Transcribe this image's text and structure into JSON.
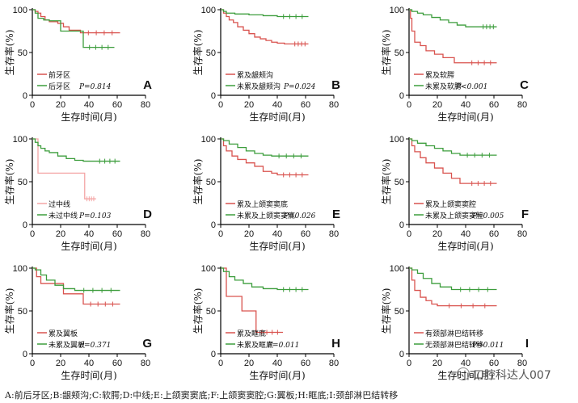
{
  "figure": {
    "caption": "A:前后牙区;B:龈颊沟;C:软腭;D:中线;E:上颌窦窦底;F:上颌窦窦腔;G:翼板;H:眶底;I:颈部淋巴结转移",
    "watermark": "口腔科达人007",
    "colors": {
      "red": "#d9534f",
      "green": "#3c9d3c",
      "pink": "#f4a6a6",
      "axis": "#000000"
    }
  },
  "chart_data": [
    {
      "type": "line",
      "panel": "A",
      "ylabel": "生存率(%)",
      "xlabel": "生存时间(月)",
      "xlim": [
        0,
        80
      ],
      "ylim": [
        0,
        100
      ],
      "xticks": [
        0,
        20,
        40,
        60,
        80
      ],
      "yticks": [
        0,
        50,
        100
      ],
      "series": [
        {
          "name": "前牙区",
          "color": "#d9534f",
          "x": [
            0,
            2,
            4,
            6,
            9,
            12,
            18,
            22,
            26,
            34,
            62
          ],
          "y": [
            100,
            98,
            96,
            92,
            88,
            86,
            84,
            80,
            76,
            73,
            73
          ]
        },
        {
          "name": "后牙区",
          "color": "#3c9d3c",
          "x": [
            0,
            2,
            4,
            8,
            12,
            20,
            28,
            34,
            36,
            58
          ],
          "y": [
            100,
            96,
            90,
            88,
            87,
            75,
            75,
            75,
            56,
            56
          ]
        }
      ],
      "pvalue": "P=0.814"
    },
    {
      "type": "line",
      "panel": "B",
      "ylabel": "生存率(%)",
      "xlabel": "生存时间(月)",
      "xlim": [
        0,
        80
      ],
      "ylim": [
        0,
        100
      ],
      "xticks": [
        0,
        20,
        40,
        60,
        80
      ],
      "yticks": [
        0,
        50,
        100
      ],
      "series": [
        {
          "name": "累及龈颊沟",
          "color": "#d9534f",
          "x": [
            0,
            2,
            4,
            6,
            9,
            12,
            16,
            20,
            24,
            28,
            32,
            36,
            40,
            45,
            50,
            62
          ],
          "y": [
            100,
            96,
            92,
            88,
            85,
            80,
            76,
            72,
            68,
            66,
            64,
            62,
            61,
            60,
            60,
            60
          ]
        },
        {
          "name": "未累及龈颊沟",
          "color": "#3c9d3c",
          "x": [
            0,
            2,
            4,
            10,
            20,
            30,
            40,
            62
          ],
          "y": [
            100,
            98,
            96,
            95,
            94,
            93,
            92,
            92
          ]
        }
      ],
      "pvalue": "P=0.024"
    },
    {
      "type": "line",
      "panel": "C",
      "ylabel": "生存率(%)",
      "xlabel": "生存时间(月)",
      "xlim": [
        0,
        80
      ],
      "ylim": [
        0,
        100
      ],
      "xticks": [
        0,
        20,
        40,
        60,
        80
      ],
      "yticks": [
        0,
        50,
        100
      ],
      "series": [
        {
          "name": "累及软腭",
          "color": "#d9534f",
          "x": [
            0,
            1,
            2,
            4,
            8,
            12,
            18,
            24,
            32,
            40,
            62
          ],
          "y": [
            100,
            90,
            75,
            62,
            58,
            52,
            48,
            44,
            38,
            38,
            38
          ]
        },
        {
          "name": "未累及软腭",
          "color": "#3c9d3c",
          "x": [
            0,
            2,
            6,
            10,
            16,
            22,
            28,
            34,
            40,
            50,
            62
          ],
          "y": [
            100,
            98,
            96,
            94,
            91,
            88,
            85,
            82,
            80,
            80,
            80
          ]
        }
      ],
      "pvalue": "P<0.001"
    },
    {
      "type": "line",
      "panel": "D",
      "ylabel": "生存率(%)",
      "xlabel": "生存时间(月)",
      "xlim": [
        0,
        80
      ],
      "ylim": [
        0,
        100
      ],
      "xticks": [
        0,
        20,
        40,
        60,
        80
      ],
      "yticks": [
        0,
        50,
        100
      ],
      "series": [
        {
          "name": "过中线",
          "color": "#f4a6a6",
          "x": [
            0,
            3,
            4,
            36,
            37,
            45
          ],
          "y": [
            100,
            100,
            60,
            60,
            30,
            30
          ]
        },
        {
          "name": "未过中线",
          "color": "#3c9d3c",
          "x": [
            0,
            2,
            4,
            6,
            9,
            12,
            18,
            24,
            30,
            36,
            44,
            62
          ],
          "y": [
            100,
            96,
            92,
            89,
            86,
            84,
            80,
            77,
            75,
            74,
            74,
            74
          ]
        }
      ],
      "pvalue": "P=0.103"
    },
    {
      "type": "line",
      "panel": "E",
      "ylabel": "生存率(%)",
      "xlabel": "生存时间(月)",
      "xlim": [
        0,
        80
      ],
      "ylim": [
        0,
        100
      ],
      "xticks": [
        0,
        20,
        40,
        60,
        80
      ],
      "yticks": [
        0,
        50,
        100
      ],
      "series": [
        {
          "name": "累及上颌窦窦底",
          "color": "#d9534f",
          "x": [
            0,
            2,
            4,
            8,
            12,
            18,
            24,
            30,
            36,
            40,
            62
          ],
          "y": [
            100,
            92,
            86,
            80,
            76,
            72,
            68,
            62,
            60,
            58,
            58
          ]
        },
        {
          "name": "未累及上颌窦窦底",
          "color": "#3c9d3c",
          "x": [
            0,
            2,
            6,
            12,
            18,
            24,
            30,
            36,
            62
          ],
          "y": [
            100,
            98,
            94,
            90,
            86,
            83,
            81,
            80,
            80
          ]
        }
      ],
      "pvalue": "P=0.026"
    },
    {
      "type": "line",
      "panel": "F",
      "ylabel": "生存率(%)",
      "xlabel": "生存时间(月)",
      "xlim": [
        0,
        80
      ],
      "ylim": [
        0,
        100
      ],
      "xticks": [
        0,
        20,
        40,
        60,
        80
      ],
      "yticks": [
        0,
        50,
        100
      ],
      "series": [
        {
          "name": "累及上颌窦窦腔",
          "color": "#d9534f",
          "x": [
            0,
            2,
            4,
            8,
            12,
            18,
            24,
            30,
            36,
            40,
            62
          ],
          "y": [
            100,
            92,
            85,
            78,
            72,
            66,
            60,
            54,
            48,
            48,
            48
          ]
        },
        {
          "name": "未累及上颌窦窦腔",
          "color": "#3c9d3c",
          "x": [
            0,
            2,
            6,
            12,
            18,
            24,
            30,
            36,
            62
          ],
          "y": [
            100,
            98,
            95,
            92,
            89,
            86,
            83,
            81,
            81
          ]
        }
      ],
      "pvalue": "P=0.005"
    },
    {
      "type": "line",
      "panel": "G",
      "ylabel": "生存率(%)",
      "xlabel": "生存时间(月)",
      "xlim": [
        0,
        80
      ],
      "ylim": [
        0,
        100
      ],
      "xticks": [
        0,
        20,
        40,
        60,
        80
      ],
      "yticks": [
        0,
        50,
        100
      ],
      "series": [
        {
          "name": "累及翼板",
          "color": "#d9534f",
          "x": [
            0,
            3,
            6,
            18,
            22,
            34,
            36,
            62
          ],
          "y": [
            100,
            90,
            82,
            82,
            70,
            70,
            58,
            58
          ]
        },
        {
          "name": "未累及翼板",
          "color": "#3c9d3c",
          "x": [
            0,
            2,
            6,
            10,
            16,
            22,
            30,
            62
          ],
          "y": [
            100,
            98,
            92,
            86,
            80,
            76,
            74,
            74
          ]
        }
      ],
      "pvalue": "P=0.371"
    },
    {
      "type": "line",
      "panel": "H",
      "ylabel": "生存率(%)",
      "xlabel": "生存时间(月)",
      "xlim": [
        0,
        80
      ],
      "ylim": [
        0,
        100
      ],
      "xticks": [
        0,
        20,
        40,
        60,
        80
      ],
      "yticks": [
        0,
        50,
        100
      ],
      "series": [
        {
          "name": "累及眶底",
          "color": "#d9534f",
          "x": [
            0,
            3,
            4,
            14,
            15,
            24,
            25,
            44
          ],
          "y": [
            100,
            100,
            67,
            67,
            50,
            50,
            25,
            25
          ]
        },
        {
          "name": "未累及眶底",
          "color": "#3c9d3c",
          "x": [
            0,
            2,
            6,
            10,
            16,
            22,
            30,
            40,
            62
          ],
          "y": [
            100,
            96,
            90,
            86,
            82,
            78,
            76,
            75,
            75
          ]
        }
      ],
      "pvalue": "P=0.011"
    },
    {
      "type": "line",
      "panel": "I",
      "ylabel": "生存率(%)",
      "xlabel": "生存时间(月)",
      "xlim": [
        0,
        80
      ],
      "ylim": [
        0,
        100
      ],
      "xticks": [
        0,
        20,
        40,
        60,
        80
      ],
      "yticks": [
        0,
        50,
        100
      ],
      "series": [
        {
          "name": "有颈部淋巴结转移",
          "color": "#d9534f",
          "x": [
            0,
            2,
            4,
            8,
            12,
            16,
            20,
            62
          ],
          "y": [
            100,
            86,
            74,
            66,
            62,
            58,
            56,
            56
          ]
        },
        {
          "name": "无颈部淋巴结转移",
          "color": "#3c9d3c",
          "x": [
            0,
            2,
            6,
            10,
            16,
            22,
            30,
            62
          ],
          "y": [
            100,
            98,
            94,
            88,
            82,
            78,
            75,
            75
          ]
        }
      ],
      "pvalue": "P=0.011"
    }
  ]
}
